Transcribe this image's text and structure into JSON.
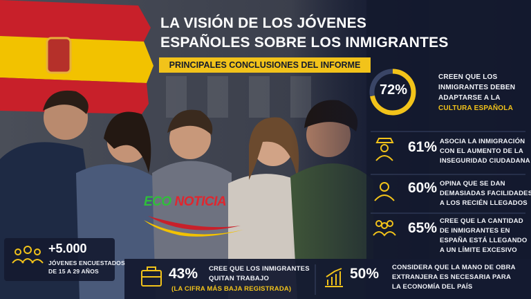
{
  "header": {
    "title_lines": [
      "LA VISIÓN DE LOS JÓVENES",
      "ESPAÑOLES SOBRE LOS INMIGRANTES"
    ],
    "subtitle": "PRINCIPALES CONCLUSIONES DEL INFORME"
  },
  "highlight": {
    "value": 72,
    "label": "72%",
    "text_lines": [
      "CREEN QUE LOS",
      "INMIGRANTES DEBEN",
      "ADAPTARSE A LA"
    ],
    "emphasis": "CULTURA ESPAÑOLA"
  },
  "stats": [
    {
      "figure": "61%",
      "text_lines": [
        "ASOCIA LA INMIGRACIÓN",
        "CON EL AUMENTO DE LA",
        "INSEGURIDAD CIUDADANA"
      ]
    },
    {
      "figure": "60%",
      "text_lines": [
        "OPINA QUE SE DAN",
        "DEMASIADAS FACILIDADES",
        "A LOS RECIÉN LLEGADOS"
      ]
    },
    {
      "figure": "65%",
      "text_lines": [
        "CREE QUE LA CANTIDAD",
        "DE INMIGRANTES EN",
        "ESPAÑA ESTÁ LLEGANDO",
        "A UN LÍMITE EXCESIVO"
      ]
    }
  ],
  "sample": {
    "figure": "+5.000",
    "text_lines": [
      "JÓVENES ENCUESTADOS",
      "DE 15 A 29 AÑOS"
    ]
  },
  "bottom": [
    {
      "figure": "43%",
      "text_lines": [
        "CREE QUE LOS INMIGRANTES",
        "QUITAN TRABAJO"
      ],
      "note": "(LA CIFRA MÁS BAJA REGISTRADA)"
    },
    {
      "figure": "50%",
      "text_lines": [
        "CONSIDERA QUE LA MANO DE OBRA",
        "EXTRANJERA ES NECESARIA PARA",
        "LA ECONOMÍA DEL PAÍS"
      ]
    }
  ],
  "logo": {
    "part1": "ECO",
    "part2": "NOTICIA"
  }
}
